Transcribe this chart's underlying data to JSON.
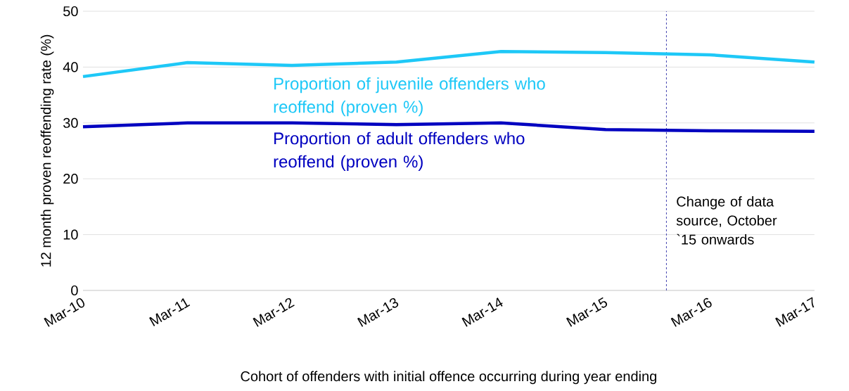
{
  "chart_data": {
    "type": "line",
    "xlabel": "Cohort of offenders with initial offence occurring during year ending",
    "ylabel": "12 month proven reoffending rate (%)",
    "x": [
      "2010-03",
      "2011-03",
      "2012-03",
      "2013-03",
      "2014-03",
      "2015-03",
      "2016-03",
      "2017-03"
    ],
    "xlim": [
      "2010-03",
      "2017-03"
    ],
    "xticks": [
      {
        "value": "2010-03",
        "label": "Mar-10"
      },
      {
        "value": "2011-03",
        "label": "Mar-11"
      },
      {
        "value": "2012-03",
        "label": "Mar-12"
      },
      {
        "value": "2013-03",
        "label": "Mar-13"
      },
      {
        "value": "2014-03",
        "label": "Mar-14"
      },
      {
        "value": "2015-03",
        "label": "Mar-15"
      },
      {
        "value": "2016-03",
        "label": "Mar-16"
      },
      {
        "value": "2017-03",
        "label": "Mar-17"
      }
    ],
    "series": [
      {
        "name": "Proportion of juvenile offenders who reoffend (proven %)",
        "color": "#1ec8f7",
        "values": [
          38.3,
          40.8,
          40.3,
          40.9,
          42.8,
          42.6,
          42.2,
          40.9
        ]
      },
      {
        "name": "Proportion of adult offenders who reoffend (proven %)",
        "color": "#0000c0",
        "values": [
          29.3,
          30.0,
          30.0,
          29.7,
          30.0,
          28.8,
          28.6,
          28.5
        ]
      }
    ],
    "ylim": [
      0,
      50
    ],
    "yticks": [
      0,
      10,
      20,
      30,
      40,
      50
    ],
    "ref_lines": [
      {
        "axis": "x",
        "value": "2015-10",
        "label": "Change of data source, October `15 onwards",
        "color": "#2f2fa8",
        "line_style": "dashed"
      }
    ],
    "grid": "y",
    "legend": false,
    "marker": "none",
    "line_style": "solid"
  }
}
